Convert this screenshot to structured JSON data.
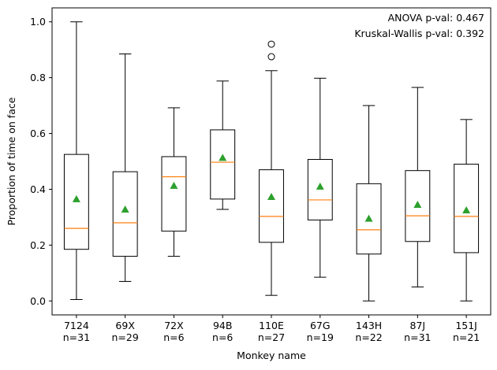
{
  "chart_data": {
    "type": "box",
    "xlabel": "Monkey name",
    "ylabel": "Proportion of time on face",
    "ylim": [
      -0.05,
      1.05
    ],
    "yticks": [
      "0.0",
      "0.2",
      "0.4",
      "0.6",
      "0.8",
      "1.0"
    ],
    "annotations": [
      "ANOVA p-val: 0.467",
      "Kruskal-Wallis p-val: 0.392"
    ],
    "colors": {
      "box": "#000000",
      "median": "#ff7f0e",
      "mean": "#2ca02c"
    },
    "groups": [
      {
        "name": "7124",
        "n_label": "n=31",
        "whisker_low": 0.005,
        "q1": 0.185,
        "median": 0.26,
        "q3": 0.525,
        "whisker_high": 1.0,
        "mean": 0.365,
        "outliers": []
      },
      {
        "name": "69X",
        "n_label": "n=29",
        "whisker_low": 0.07,
        "q1": 0.16,
        "median": 0.28,
        "q3": 0.463,
        "whisker_high": 0.885,
        "mean": 0.328,
        "outliers": []
      },
      {
        "name": "72X",
        "n_label": "n=6",
        "whisker_low": 0.16,
        "q1": 0.25,
        "median": 0.445,
        "q3": 0.517,
        "whisker_high": 0.692,
        "mean": 0.413,
        "outliers": []
      },
      {
        "name": "94B",
        "n_label": "n=6",
        "whisker_low": 0.328,
        "q1": 0.365,
        "median": 0.497,
        "q3": 0.613,
        "whisker_high": 0.788,
        "mean": 0.513,
        "outliers": []
      },
      {
        "name": "110E",
        "n_label": "n=27",
        "whisker_low": 0.02,
        "q1": 0.21,
        "median": 0.303,
        "q3": 0.47,
        "whisker_high": 0.825,
        "mean": 0.373,
        "outliers": [
          0.875,
          0.92
        ]
      },
      {
        "name": "67G",
        "n_label": "n=19",
        "whisker_low": 0.085,
        "q1": 0.29,
        "median": 0.362,
        "q3": 0.507,
        "whisker_high": 0.798,
        "mean": 0.41,
        "outliers": []
      },
      {
        "name": "143H",
        "n_label": "n=22",
        "whisker_low": 0.0,
        "q1": 0.168,
        "median": 0.255,
        "q3": 0.42,
        "whisker_high": 0.7,
        "mean": 0.295,
        "outliers": []
      },
      {
        "name": "87J",
        "n_label": "n=31",
        "whisker_low": 0.05,
        "q1": 0.213,
        "median": 0.305,
        "q3": 0.467,
        "whisker_high": 0.765,
        "mean": 0.345,
        "outliers": []
      },
      {
        "name": "151J",
        "n_label": "n=21",
        "whisker_low": 0.0,
        "q1": 0.173,
        "median": 0.303,
        "q3": 0.49,
        "whisker_high": 0.65,
        "mean": 0.325,
        "outliers": []
      }
    ]
  }
}
